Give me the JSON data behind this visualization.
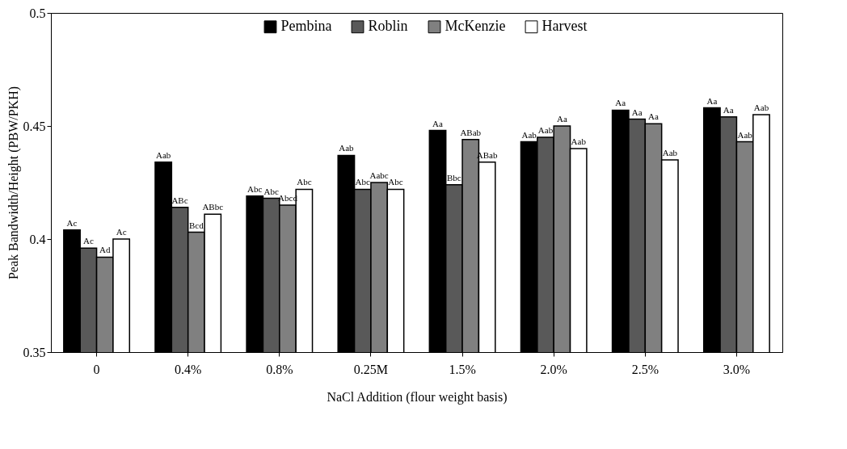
{
  "chart_data": {
    "type": "bar",
    "xlabel": "NaCl Addition (flour weight basis)",
    "ylabel": "Peak Bandwidth/Height (PBW/PKH)",
    "categories": [
      "0",
      "0.4%",
      "0.8%",
      "0.25M",
      "1.5%",
      "2.0%",
      "2.5%",
      "3.0%"
    ],
    "series": [
      {
        "name": "Pembina",
        "color": "#000000",
        "values": [
          0.404,
          0.434,
          0.419,
          0.437,
          0.448,
          0.443,
          0.457,
          0.458
        ],
        "value_labels": [
          "Ac",
          "Aab",
          "Abc",
          "Aab",
          "Aa",
          "Aab",
          "Aa",
          "Aa"
        ]
      },
      {
        "name": "Roblin",
        "color": "#595959",
        "values": [
          0.396,
          0.414,
          0.418,
          0.422,
          0.424,
          0.445,
          0.453,
          0.454
        ],
        "value_labels": [
          "Ac",
          "ABc",
          "Abc",
          "Abc",
          "Bbc",
          "Aab",
          "Aa",
          "Aa"
        ]
      },
      {
        "name": "McKenzie",
        "color": "#808080",
        "values": [
          0.392,
          0.403,
          0.415,
          0.425,
          0.444,
          0.45,
          0.451,
          0.443
        ],
        "value_labels": [
          "Ad",
          "Bcd",
          "Abcd",
          "Aabc",
          "ABab",
          "Aa",
          "Aa",
          "Aab"
        ]
      },
      {
        "name": "Harvest",
        "color": "#ffffff",
        "values": [
          0.4,
          0.411,
          0.422,
          0.422,
          0.434,
          0.44,
          0.435,
          0.455
        ],
        "value_labels": [
          "Ac",
          "ABbc",
          "Abc",
          "Abc",
          "ABab",
          "Aab",
          "Aab",
          "Aab"
        ]
      }
    ],
    "ylim": [
      0.35,
      0.5
    ],
    "yticks": [
      0.35,
      0.4,
      0.45,
      0.5
    ],
    "grid": false,
    "legend": "top"
  }
}
